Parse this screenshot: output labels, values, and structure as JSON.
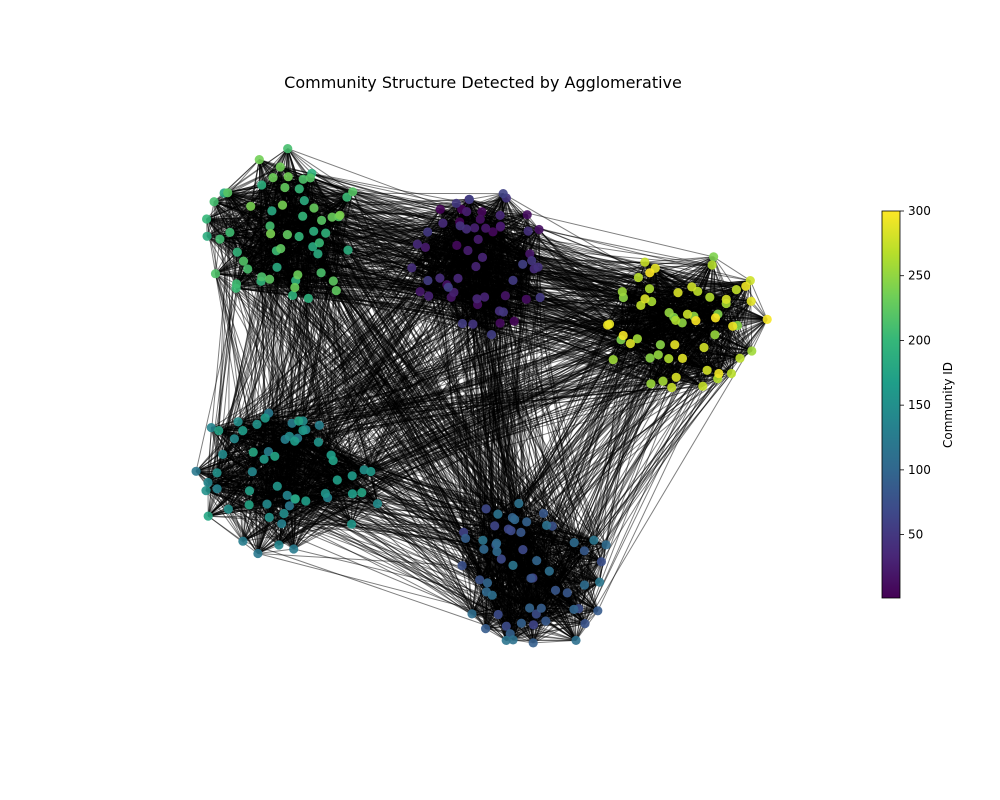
{
  "chart_data": [
    {
      "type": "network",
      "title": "Community Structure Detected by Agglomerative",
      "clusters": [
        {
          "name": "",
          "id_range": [
            1,
            60
          ],
          "node_count": 60
        },
        {
          "name": "",
          "id_range": [
            61,
            120
          ],
          "node_count": 60
        },
        {
          "name": "",
          "id_range": [
            121,
            180
          ],
          "node_count": 60
        },
        {
          "name": "",
          "id_range": [
            181,
            240
          ],
          "node_count": 60
        },
        {
          "name": "",
          "id_range": [
            241,
            300
          ],
          "node_count": 60
        }
      ],
      "edges": "dense within each cluster, many edges between clusters",
      "node_color_by": "Community ID",
      "axes_visible": false
    },
    {
      "type": "colorbar",
      "label": "Community ID",
      "colormap": "viridis",
      "range": [
        1,
        300
      ],
      "ticks": [
        {
          "value": 50,
          "label": "50"
        },
        {
          "value": 100,
          "label": "100"
        },
        {
          "value": 150,
          "label": "150"
        },
        {
          "value": 200,
          "label": "200"
        },
        {
          "value": 250,
          "label": "250"
        },
        {
          "value": 300,
          "label": "300"
        }
      ]
    }
  ],
  "colors": {
    "edge": "#000000",
    "background": "#ffffff",
    "viridis_stops": [
      "#440154",
      "#482878",
      "#3e4989",
      "#31688e",
      "#26828e",
      "#1f9e89",
      "#35b779",
      "#6ece58",
      "#b5de2b",
      "#fde725"
    ]
  }
}
